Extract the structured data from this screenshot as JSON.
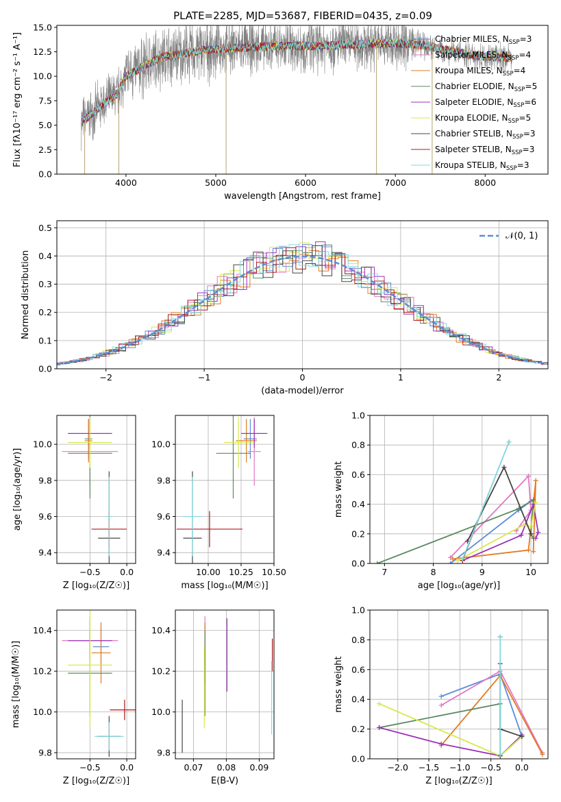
{
  "figure_title": "PLATE=2285, MJD=53687, FIBERID=0435, z=0.09",
  "series_colors": {
    "Chabrier MILES": "#5b8bd8",
    "Salpeter MILES": "#e377c2",
    "Kroupa MILES": "#e07b20",
    "Chabrier ELODIE": "#5b8a60",
    "Salpeter ELODIE": "#9b30b8",
    "Kroupa ELODIE": "#d8e84a",
    "Chabrier STELIB": "#444444",
    "Salpeter STELIB": "#b01818",
    "Kroupa STELIB": "#7fdbe0",
    "observed": "#808080",
    "gaussian": "#5b8bd8"
  },
  "chart_data": [
    {
      "id": "spectrum",
      "type": "line",
      "title": "PLATE=2285, MJD=53687, FIBERID=0435, z=0.09",
      "xlabel": "wavelength [Angstrom, rest frame]",
      "ylabel": "Flux [fλ10⁻¹⁷ erg cm⁻² s⁻¹ A⁻¹]",
      "xlim": [
        3230,
        8700
      ],
      "ylim": [
        0,
        15.2
      ],
      "xticks": [
        4000,
        5000,
        6000,
        7000,
        8000
      ],
      "yticks": [
        0.0,
        2.5,
        5.0,
        7.5,
        10.0,
        12.5,
        15.0
      ],
      "grid": false,
      "legend_position": "right",
      "legend": [
        "Chabrier MILES, N_SSP=3",
        "Salpeter MILES, N_SSP=4",
        "Kroupa MILES, N_SSP=4",
        "Chabrier ELODIE, N_SSP=5",
        "Salpeter ELODIE, N_SSP=6",
        "Kroupa ELODIE, N_SSP=5",
        "Chabrier STELIB, N_SSP=3",
        "Salpeter STELIB, N_SSP=3",
        "Kroupa STELIB, N_SSP=3"
      ],
      "continuum": {
        "x": [
          3500,
          3700,
          3900,
          4000,
          4100,
          4200,
          4400,
          4600,
          4800,
          5000,
          5200,
          5500,
          5800,
          6100,
          6400,
          6700,
          7000,
          7300,
          7600,
          7900,
          8300
        ],
        "y": [
          5.3,
          6.8,
          8.2,
          10.0,
          10.5,
          11.0,
          12.0,
          12.2,
          12.6,
          12.8,
          12.9,
          13.0,
          13.1,
          13.1,
          13.2,
          13.3,
          13.4,
          13.2,
          12.6,
          12.1,
          11.9
        ]
      },
      "spikes": [
        {
          "x": 3540,
          "y": 0
        },
        {
          "x": 3920,
          "y": 0
        },
        {
          "x": 5115,
          "y": 0
        },
        {
          "x": 6790,
          "y": 0
        },
        {
          "x": 7410,
          "y": 0
        }
      ]
    },
    {
      "id": "residuals",
      "type": "histogram",
      "xlabel": "(data-model)/error",
      "ylabel": "Normed distribution",
      "xlim": [
        -2.5,
        2.5
      ],
      "ylim": [
        0,
        0.525
      ],
      "xticks": [
        -2,
        -1,
        0,
        1,
        2
      ],
      "yticks": [
        0.0,
        0.1,
        0.2,
        0.3,
        0.4,
        0.5
      ],
      "grid": true,
      "legend_position": "upper right",
      "legend": [
        "𝒩(0, 1)"
      ],
      "bin_width": 0.1
    },
    {
      "id": "age-vs-Z",
      "type": "errorbar",
      "xlabel": "Z [log₁₀(Z/Z☉)]",
      "ylabel": "age  [log₁₀(age/yr)]",
      "xlim": [
        -0.95,
        0.12
      ],
      "ylim": [
        9.34,
        10.16
      ],
      "xticks": [
        -0.5,
        0.0
      ],
      "yticks": [
        9.4,
        9.6,
        9.8,
        10.0
      ],
      "grid": true,
      "points": [
        {
          "series": "Chabrier MILES",
          "x": -0.52,
          "xerr": 0.05,
          "y": 10.03,
          "yerr": 0.11
        },
        {
          "series": "Salpeter MILES",
          "x": -0.5,
          "xerr": 0.38,
          "y": 9.96,
          "yerr": 0.19
        },
        {
          "series": "Kroupa MILES",
          "x": -0.52,
          "xerr": 0.05,
          "y": 10.02,
          "yerr": 0.12
        },
        {
          "series": "Chabrier ELODIE",
          "x": -0.5,
          "xerr": 0.3,
          "y": 9.95,
          "yerr": 0.25
        },
        {
          "series": "Salpeter ELODIE",
          "x": -0.5,
          "xerr": 0.3,
          "y": 10.06,
          "yerr": 0.08
        },
        {
          "series": "Kroupa ELODIE",
          "x": -0.5,
          "xerr": 0.3,
          "y": 10.01,
          "yerr": 0.14
        },
        {
          "series": "Chabrier STELIB",
          "x": -0.24,
          "xerr": 0.15,
          "y": 9.48,
          "yerr": 0.37
        },
        {
          "series": "Salpeter STELIB",
          "x": -0.24,
          "xerr": 0.24,
          "y": 9.53,
          "yerr": 0.1
        },
        {
          "series": "Kroupa STELIB",
          "x": -0.24,
          "xerr": 0.05,
          "y": 9.6,
          "yerr": 0.22
        }
      ]
    },
    {
      "id": "age-vs-mass",
      "type": "errorbar",
      "xlabel": "mass [log₁₀(M/M☉)]",
      "ylabel": "",
      "xlim": [
        9.75,
        10.5
      ],
      "ylim": [
        9.34,
        10.16
      ],
      "xticks": [
        10.0,
        10.25,
        10.5
      ],
      "xticklabels": [
        "10.00",
        "10.25",
        "10.50"
      ],
      "yticks": [
        9.4,
        9.6,
        9.8,
        10.0
      ],
      "grid": true,
      "points": [
        {
          "series": "Chabrier MILES",
          "x": 10.32,
          "xerr": 0.05,
          "y": 10.03,
          "yerr": 0.11
        },
        {
          "series": "Salpeter MILES",
          "x": 10.35,
          "xerr": 0.05,
          "y": 9.96,
          "yerr": 0.19
        },
        {
          "series": "Kroupa MILES",
          "x": 10.29,
          "xerr": 0.08,
          "y": 10.02,
          "yerr": 0.12
        },
        {
          "series": "Chabrier ELODIE",
          "x": 10.19,
          "xerr": 0.13,
          "y": 9.95,
          "yerr": 0.25
        },
        {
          "series": "Salpeter ELODIE",
          "x": 10.35,
          "xerr": 0.1,
          "y": 10.06,
          "yerr": 0.08
        },
        {
          "series": "Kroupa ELODIE",
          "x": 10.23,
          "xerr": 0.11,
          "y": 10.01,
          "yerr": 0.14
        },
        {
          "series": "Chabrier STELIB",
          "x": 9.88,
          "xerr": 0.07,
          "y": 9.48,
          "yerr": 0.37
        },
        {
          "series": "Salpeter STELIB",
          "x": 10.01,
          "xerr": 0.25,
          "y": 9.53,
          "yerr": 0.1
        },
        {
          "series": "Kroupa STELIB",
          "x": 9.88,
          "xerr": 0.07,
          "y": 9.6,
          "yerr": 0.22
        }
      ]
    },
    {
      "id": "weight-vs-age",
      "type": "line",
      "xlabel": "age  [log₁₀(age/yr)]",
      "ylabel": "mass weight",
      "xlim": [
        6.7,
        10.35
      ],
      "ylim": [
        0,
        1.0
      ],
      "xticks": [
        7,
        8,
        9,
        10
      ],
      "yticks": [
        0.0,
        0.2,
        0.4,
        0.6,
        0.8,
        1.0
      ],
      "grid": true,
      "series": [
        {
          "name": "Chabrier MILES",
          "x": [
            8.35,
            9.75,
            10.0
          ],
          "y": [
            0.0,
            0.36,
            0.42
          ]
        },
        {
          "name": "Salpeter MILES",
          "x": [
            8.35,
            9.95,
            10.0,
            9.7
          ],
          "y": [
            0.04,
            0.59,
            0.36,
            0.22
          ]
        },
        {
          "name": "Kroupa MILES",
          "x": [
            8.4,
            9.95,
            10.1,
            10.05
          ],
          "y": [
            0.03,
            0.09,
            0.56,
            0.08
          ]
        },
        {
          "name": "Chabrier ELODIE",
          "x": [
            6.85,
            9.75,
            10.05,
            10.0,
            10.05
          ],
          "y": [
            0.0,
            0.37,
            0.43,
            0.2,
            0.17
          ]
        },
        {
          "name": "Salpeter ELODIE",
          "x": [
            8.6,
            9.8,
            10.05,
            10.15,
            10.1
          ],
          "y": [
            0.02,
            0.19,
            0.4,
            0.21,
            0.17
          ]
        },
        {
          "name": "Kroupa ELODIE",
          "x": [
            8.5,
            9.85,
            10.0,
            10.1
          ],
          "y": [
            0.02,
            0.26,
            0.25,
            0.41
          ]
        },
        {
          "name": "Chabrier STELIB",
          "x": [
            8.7,
            9.45,
            10.0
          ],
          "y": [
            0.15,
            0.65,
            0.2
          ]
        },
        {
          "name": "Salpeter STELIB",
          "x": [
            8.6,
            9.55
          ],
          "y": [
            0.02,
            0.82
          ]
        },
        {
          "name": "Kroupa STELIB",
          "x": [
            8.6,
            9.55
          ],
          "y": [
            0.03,
            0.82
          ]
        }
      ]
    },
    {
      "id": "mass-vs-Z",
      "type": "errorbar",
      "xlabel": "Z [log₁₀(Z/Z☉)]",
      "ylabel": "mass [log₁₀(M/M☉)]",
      "xlim": [
        -0.95,
        0.12
      ],
      "ylim": [
        9.77,
        10.5
      ],
      "xticks": [
        -0.5,
        0.0
      ],
      "yticks": [
        9.8,
        10.0,
        10.2,
        10.4
      ],
      "grid": true,
      "points": [
        {
          "series": "Chabrier MILES",
          "x": -0.35,
          "xerr": 0.11,
          "y": 10.32,
          "yerr": 0.1
        },
        {
          "series": "Salpeter MILES",
          "x": -0.5,
          "xerr": 0.38,
          "y": 10.35,
          "yerr": 0.12
        },
        {
          "series": "Kroupa MILES",
          "x": -0.35,
          "xerr": 0.13,
          "y": 10.29,
          "yerr": 0.15
        },
        {
          "series": "Chabrier ELODIE",
          "x": -0.5,
          "xerr": 0.3,
          "y": 10.19,
          "yerr": 0.21
        },
        {
          "series": "Salpeter ELODIE",
          "x": -0.5,
          "xerr": 0.3,
          "y": 10.35,
          "yerr": 0.1
        },
        {
          "series": "Kroupa ELODIE",
          "x": -0.5,
          "xerr": 0.3,
          "y": 10.23,
          "yerr": 0.3
        },
        {
          "series": "Chabrier STELIB",
          "x": -0.24,
          "xerr": 0.16,
          "y": 9.88,
          "yerr": 0.1
        },
        {
          "series": "Salpeter STELIB",
          "x": -0.03,
          "xerr": 0.2,
          "y": 10.01,
          "yerr": 0.05
        },
        {
          "series": "Kroupa STELIB",
          "x": -0.24,
          "xerr": 0.2,
          "y": 9.88,
          "yerr": 0.07
        }
      ]
    },
    {
      "id": "mass-vs-ebv",
      "type": "errorbar",
      "xlabel": "E(B-V)",
      "ylabel": "",
      "xlim": [
        0.0645,
        0.0945
      ],
      "ylim": [
        9.77,
        10.5
      ],
      "xticks": [
        0.07,
        0.08,
        0.09
      ],
      "yticks": [
        9.8,
        10.0,
        10.2,
        10.4
      ],
      "grid": true,
      "points": [
        {
          "series": "Chabrier MILES",
          "x": 0.0735,
          "xerr": 0.0,
          "y": 10.32,
          "yerr": 0.1
        },
        {
          "series": "Salpeter MILES",
          "x": 0.0735,
          "xerr": 0.0,
          "y": 10.35,
          "yerr": 0.12
        },
        {
          "series": "Kroupa MILES",
          "x": 0.0735,
          "xerr": 0.0,
          "y": 10.29,
          "yerr": 0.15
        },
        {
          "series": "Chabrier ELODIE",
          "x": 0.0735,
          "xerr": 0.0,
          "y": 10.19,
          "yerr": 0.21
        },
        {
          "series": "Salpeter ELODIE",
          "x": 0.0802,
          "xerr": 0.0,
          "y": 10.28,
          "yerr": 0.18
        },
        {
          "series": "Kroupa ELODIE",
          "x": 0.0733,
          "xerr": 0.0,
          "y": 10.12,
          "yerr": 0.2
        },
        {
          "series": "Chabrier STELIB",
          "x": 0.0666,
          "xerr": 0.0,
          "y": 9.93,
          "yerr": 0.13
        },
        {
          "series": "Salpeter STELIB",
          "x": 0.094,
          "xerr": 0.0,
          "y": 10.28,
          "yerr": 0.08
        },
        {
          "series": "Kroupa STELIB",
          "x": 0.0938,
          "xerr": 0.0,
          "y": 10.07,
          "yerr": 0.18
        }
      ]
    },
    {
      "id": "weight-vs-Z",
      "type": "line",
      "xlabel": "Z [log₁₀(Z/Z☉)]",
      "ylabel": "mass weight",
      "xlim": [
        -2.45,
        0.42
      ],
      "ylim": [
        0,
        1.0
      ],
      "xticks": [
        -2.0,
        -1.5,
        -1.0,
        -0.5,
        0.0
      ],
      "yticks": [
        0.0,
        0.2,
        0.4,
        0.6,
        0.8,
        1.0
      ],
      "grid": true,
      "series": [
        {
          "name": "Chabrier MILES",
          "x": [
            -1.3,
            -0.35,
            0.0,
            -0.35
          ],
          "y": [
            0.42,
            0.57,
            0.15,
            0.02
          ]
        },
        {
          "name": "Salpeter MILES",
          "x": [
            -1.3,
            -0.35,
            0.33
          ],
          "y": [
            0.36,
            0.59,
            0.04
          ]
        },
        {
          "name": "Kroupa MILES",
          "x": [
            -1.3,
            -0.35,
            0.33
          ],
          "y": [
            0.09,
            0.56,
            0.03
          ]
        },
        {
          "name": "Chabrier ELODIE",
          "x": [
            -2.3,
            -0.35,
            -0.35
          ],
          "y": [
            0.21,
            0.37,
            0.02
          ]
        },
        {
          "name": "Salpeter ELODIE",
          "x": [
            -2.3,
            -1.3,
            -0.35,
            0.0
          ],
          "y": [
            0.21,
            0.1,
            0.02,
            0.16
          ]
        },
        {
          "name": "Kroupa ELODIE",
          "x": [
            -2.3,
            -0.35,
            0.0
          ],
          "y": [
            0.37,
            0.02,
            0.15
          ]
        },
        {
          "name": "Chabrier STELIB",
          "x": [
            -0.35,
            -0.35,
            0.0
          ],
          "y": [
            0.64,
            0.2,
            0.15
          ]
        },
        {
          "name": "Salpeter STELIB",
          "x": [
            -0.35,
            -0.35
          ],
          "y": [
            0.82,
            0.02
          ]
        },
        {
          "name": "Kroupa STELIB",
          "x": [
            -0.35,
            -0.35
          ],
          "y": [
            0.82,
            0.03
          ]
        }
      ]
    }
  ]
}
